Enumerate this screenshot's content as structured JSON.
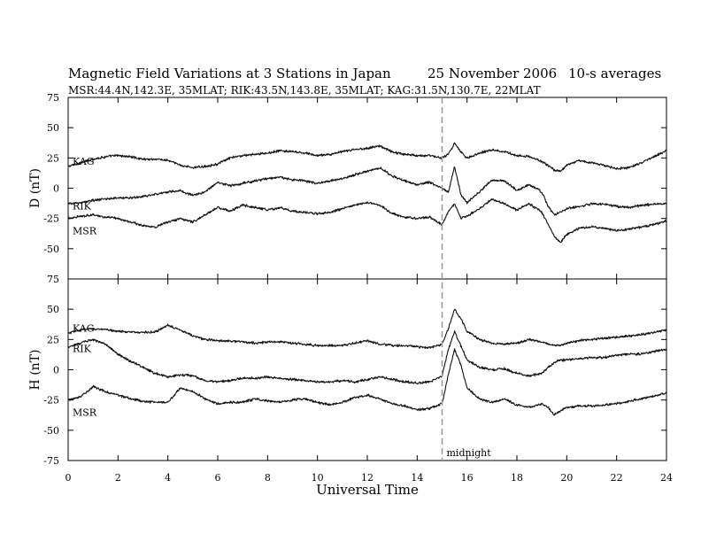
{
  "header": {
    "title": "Magnetic Field Variations at 3 Stations in Japan",
    "date": "25 November 2006",
    "averaging": "10-s averages",
    "stations": "MSR:44.4N,142.3E, 35MLAT;  RIK:43.5N,143.8E, 35MLAT;  KAG:31.5N,130.7E, 22MLAT"
  },
  "colors": {
    "trace": "#111111",
    "axis": "#000000",
    "midnight_line": "#999999"
  },
  "chart_data": [
    {
      "type": "line",
      "panel": "D",
      "ylabel": "D (nT)",
      "ylim": [
        -75,
        75
      ],
      "yticks": [
        -75,
        -50,
        -25,
        0,
        25,
        50,
        75
      ],
      "xlim": [
        0,
        24
      ],
      "xticks": [
        0,
        2,
        4,
        6,
        8,
        10,
        12,
        14,
        16,
        18,
        20,
        22,
        24
      ],
      "x": [
        0,
        0.5,
        1,
        1.5,
        2,
        2.5,
        3,
        3.5,
        4,
        4.5,
        5,
        5.5,
        6,
        6.5,
        7,
        7.5,
        8,
        8.5,
        9,
        9.5,
        10,
        10.5,
        11,
        11.5,
        12,
        12.5,
        13,
        13.5,
        14,
        14.5,
        15,
        15.25,
        15.5,
        15.75,
        16,
        16.5,
        17,
        17.5,
        18,
        18.5,
        19,
        19.25,
        19.5,
        19.75,
        20,
        20.5,
        21,
        21.5,
        22,
        22.5,
        23,
        23.5,
        24
      ],
      "series": [
        {
          "name": "KAG",
          "values": [
            18,
            21,
            24,
            26,
            27,
            26,
            24,
            24,
            23,
            19,
            17,
            18,
            20,
            25,
            27,
            28,
            29,
            31,
            30,
            29,
            27,
            28,
            30,
            32,
            33,
            35,
            30,
            28,
            27,
            27,
            25,
            28,
            37,
            30,
            25,
            29,
            32,
            30,
            27,
            26,
            22,
            19,
            15,
            14,
            19,
            23,
            21,
            19,
            16,
            17,
            21,
            26,
            31
          ]
        },
        {
          "name": "RIK",
          "values": [
            -13,
            -12,
            -10,
            -9,
            -8,
            -8,
            -7,
            -5,
            -3,
            -2,
            -6,
            -3,
            5,
            2,
            4,
            6,
            8,
            9,
            7,
            6,
            4,
            6,
            8,
            11,
            14,
            17,
            10,
            6,
            3,
            5,
            0,
            -3,
            18,
            -5,
            -12,
            -3,
            7,
            6,
            -2,
            3,
            -3,
            -15,
            -22,
            -20,
            -17,
            -15,
            -13,
            -13,
            -15,
            -16,
            -14,
            -13,
            -13
          ]
        },
        {
          "name": "MSR",
          "values": [
            -25,
            -23,
            -22,
            -24,
            -25,
            -28,
            -31,
            -32,
            -28,
            -25,
            -28,
            -22,
            -16,
            -19,
            -14,
            -16,
            -18,
            -16,
            -19,
            -20,
            -21,
            -20,
            -17,
            -14,
            -12,
            -14,
            -21,
            -24,
            -25,
            -24,
            -30,
            -19,
            -13,
            -25,
            -23,
            -17,
            -9,
            -13,
            -18,
            -13,
            -20,
            -30,
            -40,
            -45,
            -38,
            -33,
            -32,
            -33,
            -35,
            -34,
            -32,
            -30,
            -27
          ]
        }
      ]
    },
    {
      "type": "line",
      "panel": "H",
      "ylabel": "H (nT)",
      "ylim": [
        -75,
        75
      ],
      "yticks": [
        -75,
        -50,
        -25,
        0,
        25,
        50,
        75
      ],
      "xlim": [
        0,
        24
      ],
      "xticks": [
        0,
        2,
        4,
        6,
        8,
        10,
        12,
        14,
        16,
        18,
        20,
        22,
        24
      ],
      "xlabel": "Universal Time",
      "x": [
        0,
        0.5,
        1,
        1.5,
        2,
        2.5,
        3,
        3.5,
        4,
        4.5,
        5,
        5.5,
        6,
        6.5,
        7,
        7.5,
        8,
        8.5,
        9,
        9.5,
        10,
        10.5,
        11,
        11.5,
        12,
        12.5,
        13,
        13.5,
        14,
        14.5,
        15,
        15.25,
        15.5,
        15.75,
        16,
        16.5,
        17,
        17.5,
        18,
        18.5,
        19,
        19.25,
        19.5,
        19.75,
        20,
        20.5,
        21,
        21.5,
        22,
        22.5,
        23,
        23.5,
        24
      ],
      "series": [
        {
          "name": "KAG",
          "values": [
            30,
            33,
            34,
            33,
            32,
            31,
            31,
            31,
            37,
            33,
            28,
            25,
            24,
            24,
            23,
            22,
            23,
            23,
            22,
            21,
            20,
            20,
            20,
            22,
            24,
            21,
            20,
            20,
            19,
            18,
            21,
            34,
            50,
            42,
            32,
            25,
            22,
            21,
            22,
            25,
            23,
            21,
            20,
            20,
            22,
            24,
            25,
            26,
            27,
            28,
            29,
            31,
            33
          ]
        },
        {
          "name": "RIK",
          "values": [
            19,
            22,
            25,
            21,
            13,
            7,
            2,
            -3,
            -6,
            -4,
            -5,
            -9,
            -10,
            -9,
            -7,
            -7,
            -6,
            -7,
            -8,
            -9,
            -10,
            -10,
            -9,
            -10,
            -8,
            -6,
            -8,
            -10,
            -11,
            -10,
            -5,
            17,
            32,
            20,
            8,
            2,
            0,
            1,
            -3,
            -5,
            -3,
            2,
            6,
            8,
            8,
            9,
            10,
            10,
            12,
            13,
            13,
            15,
            17
          ]
        },
        {
          "name": "MSR",
          "values": [
            -25,
            -22,
            -14,
            -18,
            -21,
            -24,
            -26,
            -27,
            -27,
            -15,
            -18,
            -24,
            -28,
            -27,
            -27,
            -24,
            -26,
            -27,
            -25,
            -24,
            -27,
            -29,
            -27,
            -23,
            -21,
            -24,
            -28,
            -30,
            -33,
            -32,
            -28,
            -4,
            17,
            4,
            -15,
            -24,
            -27,
            -24,
            -29,
            -31,
            -28,
            -31,
            -37,
            -34,
            -31,
            -30,
            -30,
            -29,
            -28,
            -26,
            -24,
            -22,
            -19
          ]
        }
      ]
    }
  ],
  "annotation": {
    "x": 15,
    "label": "midnight"
  }
}
